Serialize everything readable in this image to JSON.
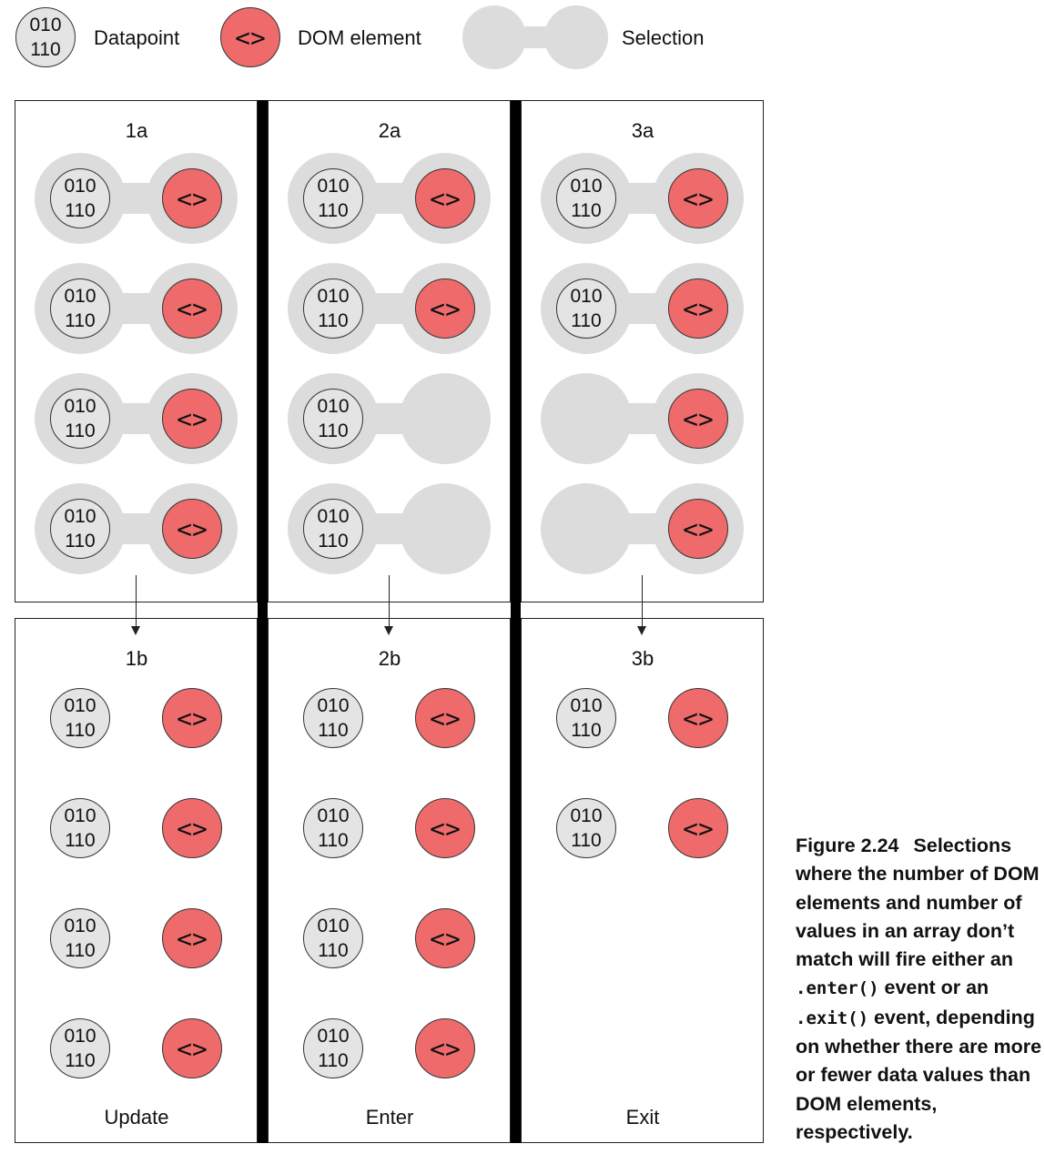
{
  "node_text": {
    "datapoint_line1": "010",
    "datapoint_line2": "110",
    "dom": "<>"
  },
  "legend": {
    "datapoint": "Datapoint",
    "dom_element": "DOM element",
    "selection": "Selection"
  },
  "panels": {
    "p1a": {
      "title": "1a"
    },
    "p2a": {
      "title": "2a"
    },
    "p3a": {
      "title": "3a"
    },
    "p1b": {
      "title": "1b",
      "label": "Update"
    },
    "p2b": {
      "title": "2b",
      "label": "Enter"
    },
    "p3b": {
      "title": "3b",
      "label": "Exit"
    }
  },
  "caption": {
    "number": "Figure 2.24",
    "text1": "Selections where the number of DOM elements and number of values in an array don’t match will fire either an ",
    "code1": ".enter()",
    "text2": " event or an ",
    "code2": ".exit()",
    "text3": " event, depending on whether there are more or fewer data values than DOM elements, respectively."
  },
  "colors": {
    "dom_fill": "#ef6b6b",
    "datapoint_fill": "#e4e4e4",
    "selection_fill": "#dcdcdc",
    "divider": "#000000"
  }
}
